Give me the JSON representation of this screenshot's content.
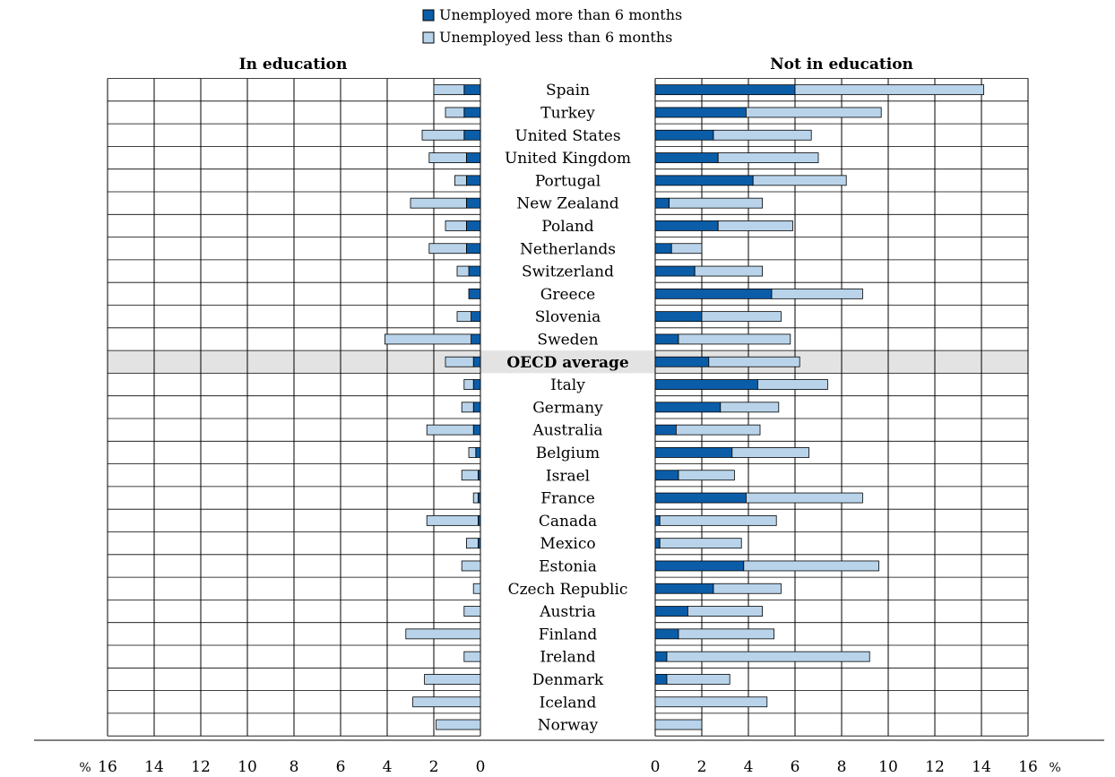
{
  "legend": {
    "long_label": "Unemployed more than 6 months",
    "short_label": "Unemployed less than 6 months"
  },
  "panels": {
    "left_title": "In education",
    "right_title": "Not in education"
  },
  "axis": {
    "unit": "%",
    "left_ticks": [
      "16",
      "14",
      "12",
      "10",
      "8",
      "6",
      "4",
      "2",
      "0"
    ],
    "right_ticks": [
      "0",
      "2",
      "4",
      "6",
      "8",
      "10",
      "12",
      "14",
      "16"
    ]
  },
  "colors": {
    "long": "#0b5da8",
    "short": "#b9d4ea",
    "highlight_row": "#e3e3e3"
  },
  "chart_data": {
    "type": "bar",
    "orientation": "horizontal",
    "xlim": [
      0,
      16
    ],
    "unit": "%",
    "highlight": "OECD average",
    "categories": [
      "Spain",
      "Turkey",
      "United States",
      "United Kingdom",
      "Portugal",
      "New Zealand",
      "Poland",
      "Netherlands",
      "Switzerland",
      "Greece",
      "Slovenia",
      "Sweden",
      "OECD average",
      "Italy",
      "Germany",
      "Australia",
      "Belgium",
      "Israel",
      "France",
      "Canada",
      "Mexico",
      "Estonia",
      "Czech Republic",
      "Austria",
      "Finland",
      "Ireland",
      "Denmark",
      "Iceland",
      "Norway"
    ],
    "series": [
      {
        "name": "Unemployed more than 6 months",
        "panel": "In education",
        "values": [
          0.7,
          0.7,
          0.7,
          0.6,
          0.6,
          0.6,
          0.6,
          0.6,
          0.5,
          0.5,
          0.4,
          0.4,
          0.3,
          0.3,
          0.3,
          0.3,
          0.2,
          0.1,
          0.1,
          0.1,
          0.1,
          0,
          0,
          0,
          0,
          0,
          0,
          0,
          0
        ]
      },
      {
        "name": "Unemployed less than 6 months",
        "panel": "In education",
        "values": [
          1.3,
          0.8,
          1.8,
          1.6,
          0.5,
          2.4,
          0.9,
          1.6,
          0.5,
          0,
          0.6,
          3.7,
          1.2,
          0.4,
          0.5,
          2.0,
          0.3,
          0.7,
          0.2,
          2.2,
          0.5,
          0.8,
          0.3,
          0.7,
          3.2,
          0.7,
          2.4,
          2.9,
          1.9
        ]
      },
      {
        "name": "Unemployed more than 6 months",
        "panel": "Not in education",
        "values": [
          6.0,
          3.9,
          2.5,
          2.7,
          4.2,
          0.6,
          2.7,
          0.7,
          1.7,
          5.0,
          2.0,
          1.0,
          2.3,
          4.4,
          2.8,
          0.9,
          3.3,
          1.0,
          3.9,
          0.2,
          0.2,
          3.8,
          2.5,
          1.4,
          1.0,
          0.5,
          0.5,
          0,
          0
        ]
      },
      {
        "name": "Unemployed less than 6 months",
        "panel": "Not in education",
        "values": [
          8.1,
          5.8,
          4.2,
          4.3,
          4.0,
          4.0,
          3.2,
          1.3,
          2.9,
          3.9,
          3.4,
          4.8,
          3.9,
          3.0,
          2.5,
          3.6,
          3.3,
          2.4,
          5.0,
          5.0,
          3.5,
          5.8,
          2.9,
          3.2,
          4.1,
          8.7,
          2.7,
          4.8,
          2.0
        ]
      }
    ]
  }
}
